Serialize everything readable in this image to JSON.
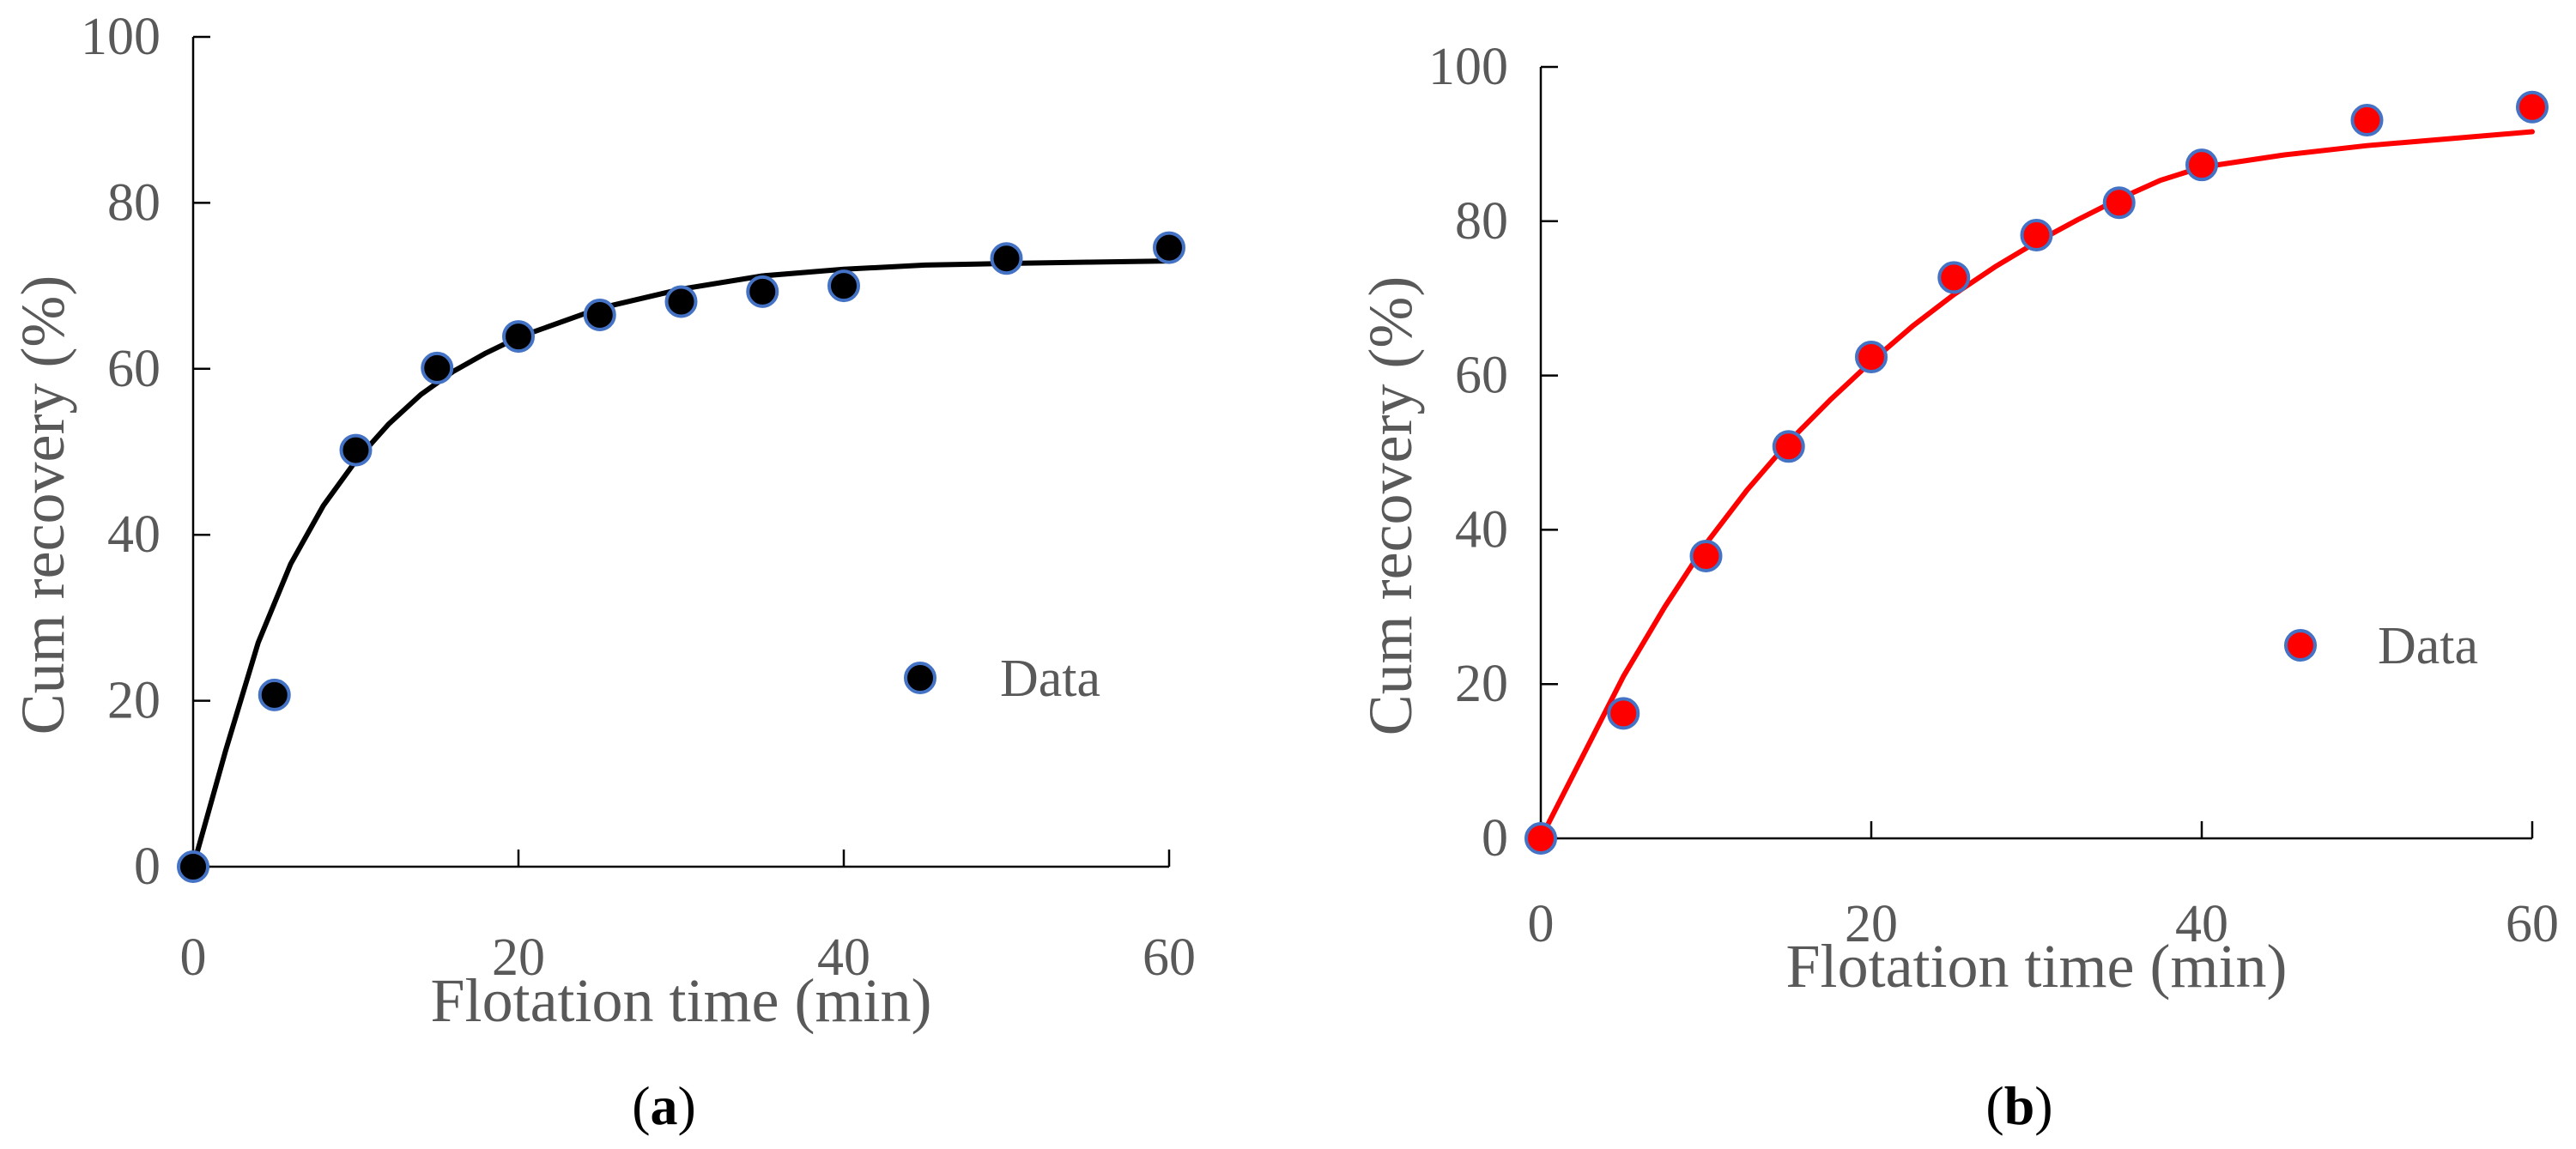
{
  "chart_data": [
    {
      "type": "scatter",
      "panel_label": "a",
      "xlabel": "Flotation time (min)",
      "ylabel": "Cum recovery (%)",
      "xlim": [
        0,
        60
      ],
      "ylim": [
        0,
        100
      ],
      "xticks": [
        0,
        20,
        40,
        60
      ],
      "yticks": [
        0,
        20,
        40,
        60,
        80,
        100
      ],
      "legend": {
        "label": "Data",
        "position": "right-middle"
      },
      "point_color": "#000000",
      "point_edge_color": "#4472C4",
      "fit_color": "#000000",
      "series": [
        {
          "name": "Data",
          "x": [
            0,
            5,
            10,
            15,
            20,
            25,
            30,
            35,
            40,
            50,
            60
          ],
          "y": [
            0,
            20.7,
            50.2,
            60.1,
            63.9,
            66.5,
            68.1,
            69.3,
            70.0,
            73.3,
            74.6
          ]
        }
      ],
      "fit": {
        "x": [
          0,
          2,
          4,
          6,
          8,
          10,
          12,
          14,
          16,
          18,
          20,
          25,
          30,
          35,
          40,
          45,
          50,
          55,
          60
        ],
        "y": [
          0,
          14,
          27,
          36.5,
          43.5,
          48.9,
          53.3,
          56.9,
          59.7,
          61.9,
          63.8,
          67.3,
          69.6,
          71.2,
          72.0,
          72.5,
          72.7,
          72.85,
          73.0
        ]
      }
    },
    {
      "type": "scatter",
      "panel_label": "b",
      "xlabel": "Flotation time (min)",
      "ylabel": "Cum recovery (%)",
      "xlim": [
        0,
        60
      ],
      "ylim": [
        0,
        100
      ],
      "xticks": [
        0,
        20,
        40,
        60
      ],
      "yticks": [
        0,
        20,
        40,
        60,
        80,
        100
      ],
      "legend": {
        "label": "Data",
        "position": "right-middle"
      },
      "point_color": "#FF0000",
      "point_edge_color": "#4472C4",
      "fit_color": "#FF0000",
      "series": [
        {
          "name": "Data",
          "x": [
            0,
            5,
            10,
            15,
            20,
            25,
            30,
            35,
            40,
            50,
            60
          ],
          "y": [
            0,
            16.2,
            36.6,
            50.8,
            62.4,
            72.7,
            78.2,
            82.4,
            87.3,
            93.1,
            94.8
          ]
        }
      ],
      "fit": {
        "x": [
          0,
          2.5,
          5,
          7.5,
          10,
          12.5,
          15,
          17.5,
          20,
          22.5,
          25,
          27.5,
          30,
          32.5,
          35,
          37.5,
          40,
          45,
          50,
          55,
          60
        ],
        "y": [
          0,
          10.5,
          21.0,
          30.0,
          38.2,
          45.2,
          51.4,
          56.8,
          61.8,
          66.4,
          70.5,
          74.1,
          77.3,
          80.2,
          82.9,
          85.3,
          87.0,
          88.6,
          89.8,
          90.7,
          91.6
        ]
      }
    }
  ]
}
